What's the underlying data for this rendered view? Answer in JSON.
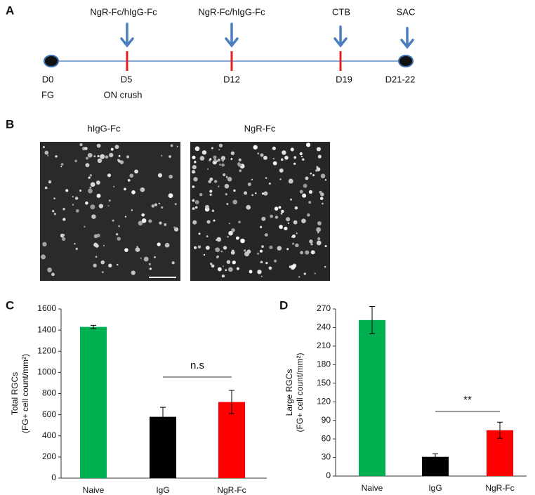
{
  "panel_labels": [
    "A",
    "B",
    "C",
    "D"
  ],
  "timeline": {
    "treatments": [
      "NgR-Fc/hIgG-Fc",
      "NgR-Fc/hIgG-Fc",
      "CTB",
      "SAC"
    ],
    "days": [
      "D0",
      "D5",
      "D12",
      "D19",
      "D21-22"
    ],
    "procedures": [
      "FG",
      "ON crush"
    ]
  },
  "images": {
    "titles": [
      "hIgG-Fc",
      "NgR-Fc"
    ]
  },
  "chart_data": [
    {
      "type": "bar",
      "ylabel": [
        "Total RGCs",
        "(FG+ cell count/mm²)"
      ],
      "categories": [
        "Naive",
        "IgG",
        "NgR-Fc"
      ],
      "values": [
        1430,
        580,
        720
      ],
      "errors": [
        15,
        90,
        110
      ],
      "colors": [
        "#00b050",
        "#000000",
        "#ff0000"
      ],
      "ylim": [
        0,
        1600
      ],
      "yticks": [
        0,
        200,
        400,
        600,
        800,
        1000,
        1200,
        1400,
        1600
      ],
      "annotation": "n.s"
    },
    {
      "type": "bar",
      "ylabel": [
        "Large RGCs",
        "(FG+ cell count/mm²)"
      ],
      "categories": [
        "Naive",
        "IgG",
        "NgR-Fc"
      ],
      "values": [
        252,
        31,
        74
      ],
      "errors": [
        22,
        5,
        13
      ],
      "colors": [
        "#00b050",
        "#000000",
        "#ff0000"
      ],
      "ylim": [
        0,
        270
      ],
      "yticks": [
        0,
        30,
        60,
        90,
        120,
        150,
        180,
        210,
        240,
        270
      ],
      "annotation": "**"
    }
  ]
}
